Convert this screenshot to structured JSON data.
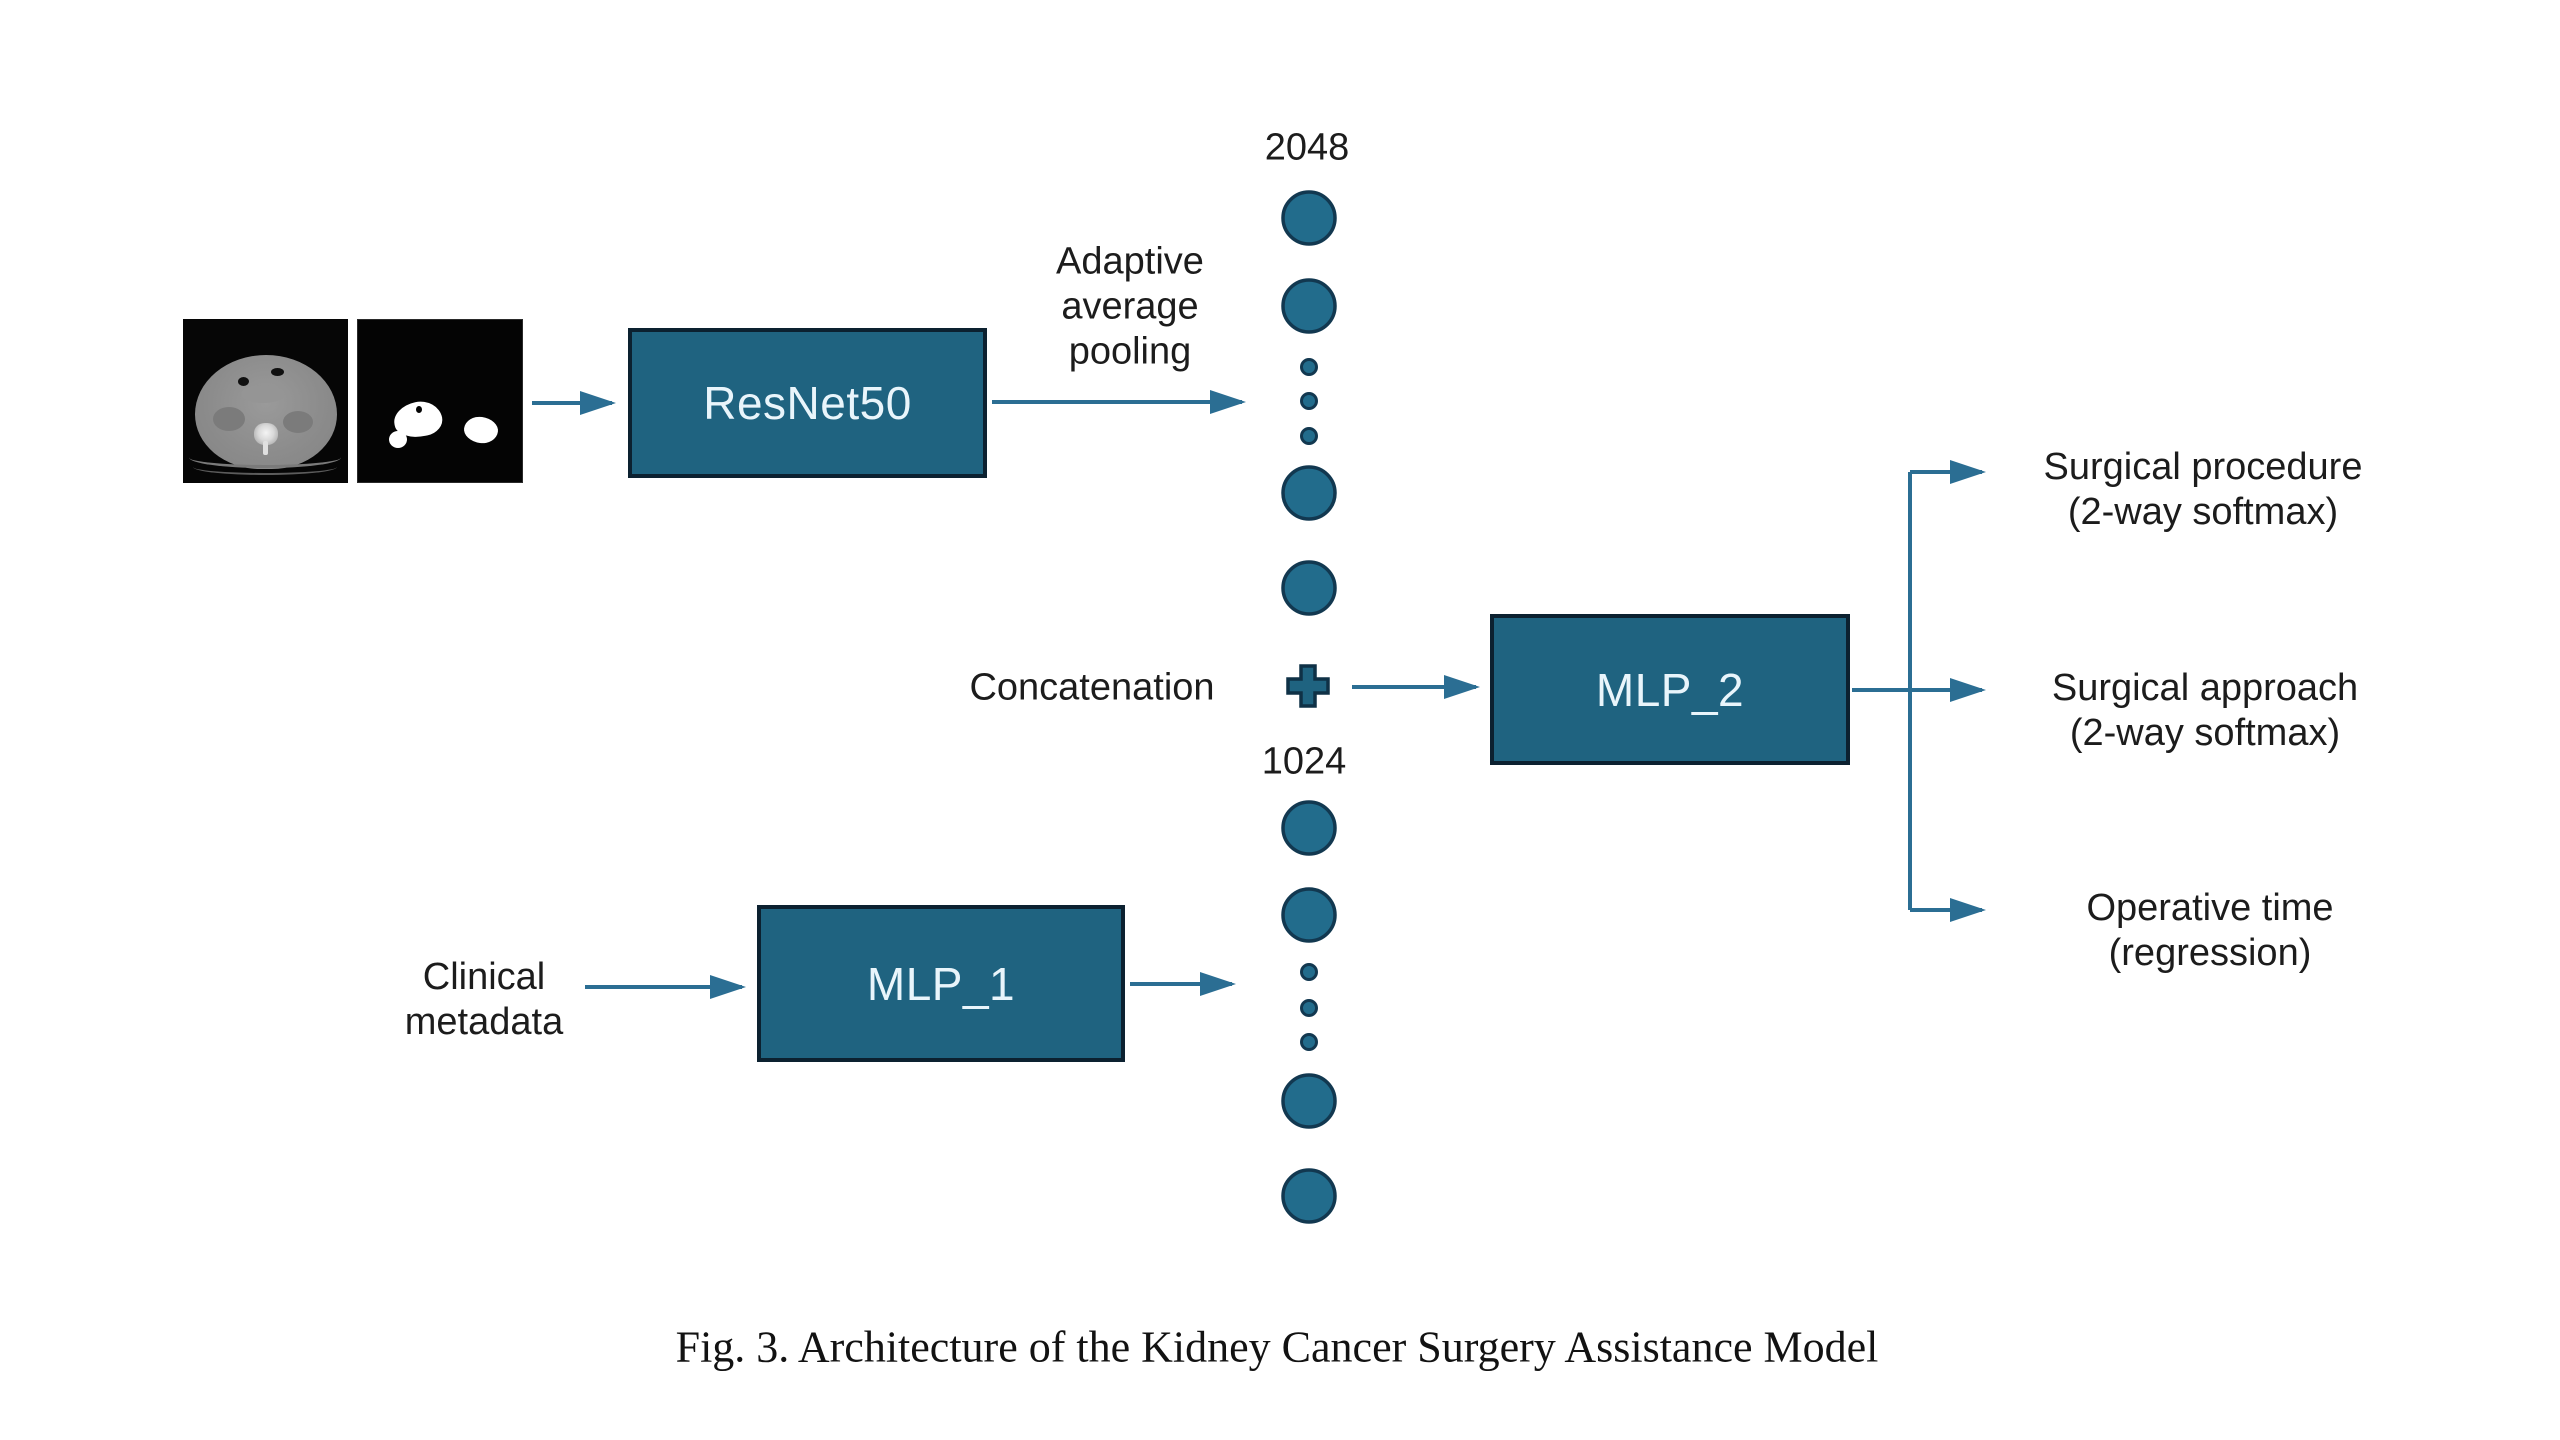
{
  "figure": {
    "caption": "Fig. 3. Architecture of the Kidney Cancer Surgery Assistance Model"
  },
  "inputs": {
    "ct_image": "abdominal-ct-slice",
    "mask_image": "kidney-tumor-segmentation-mask",
    "clinical": {
      "line1": "Clinical",
      "line2": "metadata"
    }
  },
  "blocks": {
    "resnet": "ResNet50",
    "mlp1": "MLP_1",
    "mlp2": "MLP_2"
  },
  "labels": {
    "pooling": {
      "line1": "Adaptive",
      "line2": "average",
      "line3": "pooling"
    },
    "concatenation": "Concatenation",
    "top_vector_dim": "2048",
    "bottom_vector_dim": "1024"
  },
  "vectors": {
    "top": {
      "pattern": [
        "big",
        "big",
        "dot",
        "dot",
        "dot",
        "big",
        "big"
      ]
    },
    "bottom": {
      "pattern": [
        "big",
        "big",
        "dot",
        "dot",
        "dot",
        "big",
        "big"
      ]
    }
  },
  "outputs": [
    {
      "line1": "Surgical procedure",
      "line2": "(2-way softmax)"
    },
    {
      "line1": "Surgical approach",
      "line2": "(2-way softmax)"
    },
    {
      "line1": "Operative time",
      "line2": "(regression)"
    }
  ],
  "colors": {
    "node_fill": "#226C8C",
    "node_border": "#123850",
    "box_fill": "#1F6380",
    "box_border": "#0C2130",
    "box_text": "#E9F5FB",
    "arrow": "#2B6E93",
    "text": "#1c1c1c"
  }
}
